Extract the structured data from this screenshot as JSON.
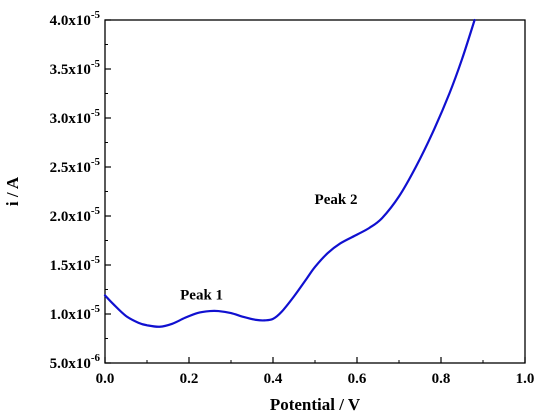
{
  "chart_data": {
    "type": "line",
    "title": "",
    "xlabel": "Potential / V",
    "ylabel": "i / A",
    "xlim": [
      0.0,
      1.0
    ],
    "ylim": [
      5e-06,
      4e-05
    ],
    "grid": false,
    "x_ticks": [
      {
        "value": 0.0,
        "label": "0.0"
      },
      {
        "value": 0.2,
        "label": "0.2"
      },
      {
        "value": 0.4,
        "label": "0.4"
      },
      {
        "value": 0.6,
        "label": "0.6"
      },
      {
        "value": 0.8,
        "label": "0.8"
      },
      {
        "value": 1.0,
        "label": "1.0"
      }
    ],
    "y_ticks": [
      {
        "value": 5e-06,
        "mantissa": "5.0x10",
        "exp": "-6"
      },
      {
        "value": 1e-05,
        "mantissa": "1.0x10",
        "exp": "-5"
      },
      {
        "value": 1.5e-05,
        "mantissa": "1.5x10",
        "exp": "-5"
      },
      {
        "value": 2e-05,
        "mantissa": "2.0x10",
        "exp": "-5"
      },
      {
        "value": 2.5e-05,
        "mantissa": "2.5x10",
        "exp": "-5"
      },
      {
        "value": 3e-05,
        "mantissa": "3.0x10",
        "exp": "-5"
      },
      {
        "value": 3.5e-05,
        "mantissa": "3.5x10",
        "exp": "-5"
      },
      {
        "value": 4e-05,
        "mantissa": "4.0x10",
        "exp": "-5"
      }
    ],
    "series": [
      {
        "color": "#1010d0",
        "x": [
          0.0,
          0.02,
          0.05,
          0.08,
          0.1,
          0.13,
          0.16,
          0.19,
          0.22,
          0.25,
          0.27,
          0.3,
          0.33,
          0.36,
          0.38,
          0.4,
          0.42,
          0.45,
          0.48,
          0.5,
          0.53,
          0.56,
          0.6,
          0.63,
          0.66,
          0.7,
          0.74,
          0.78,
          0.82,
          0.85,
          0.88
        ],
        "y": [
          1.19e-05,
          1.1e-05,
          9.8e-06,
          9.1e-06,
          8.85e-06,
          8.7e-06,
          9e-06,
          9.6e-06,
          1.01e-05,
          1.03e-05,
          1.03e-05,
          1.01e-05,
          9.7e-06,
          9.4e-06,
          9.35e-06,
          9.5e-06,
          1.02e-05,
          1.18e-05,
          1.36e-05,
          1.48e-05,
          1.62e-05,
          1.72e-05,
          1.81e-05,
          1.88e-05,
          1.98e-05,
          2.2e-05,
          2.5e-05,
          2.85e-05,
          3.25e-05,
          3.6e-05,
          4e-05
        ]
      }
    ],
    "annotations": [
      {
        "text": "Peak 1",
        "x": 0.23,
        "y": 1.15e-05
      },
      {
        "text": "Peak 2",
        "x": 0.55,
        "y": 2.12e-05
      }
    ]
  }
}
